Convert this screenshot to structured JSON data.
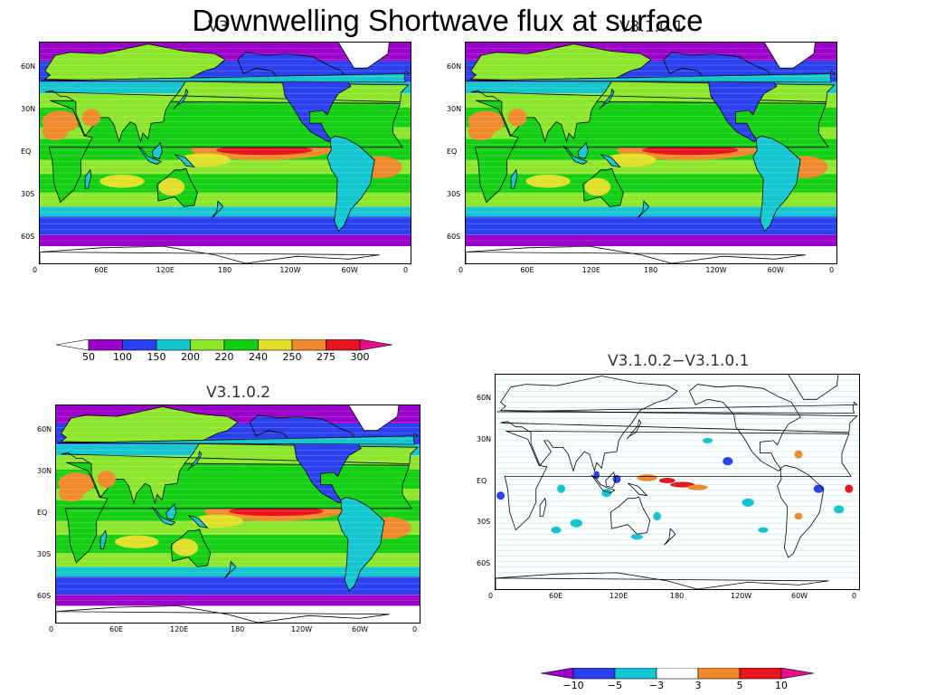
{
  "page": {
    "title": "Downwelling Shortwave flux at surface"
  },
  "panels": {
    "top_left": {
      "title": "V3",
      "kind": "absolute"
    },
    "top_right": {
      "title": "V3.1.0.1",
      "kind": "absolute"
    },
    "bottom_left": {
      "title": "V3.1.0.2",
      "kind": "absolute"
    },
    "bottom_right": {
      "title": "V3.1.0.2−V3.1.0.1",
      "kind": "difference"
    }
  },
  "axes": {
    "lat_ticks": [
      "60N",
      "30N",
      "EQ",
      "30S",
      "60S"
    ],
    "lon_ticks": [
      "0",
      "60E",
      "120E",
      "180",
      "120W",
      "60W",
      "0"
    ]
  },
  "colorbars": {
    "absolute": {
      "labels": [
        "50",
        "100",
        "150",
        "200",
        "220",
        "240",
        "250",
        "275",
        "300"
      ],
      "colors": [
        "#ffffff",
        "#9b00c8",
        "#2b40ee",
        "#14c6d0",
        "#8ee62c",
        "#12cf12",
        "#e0e02a",
        "#f08a2c",
        "#e8141e",
        "#e2108a"
      ]
    },
    "difference": {
      "labels": [
        "−10",
        "−5",
        "−3",
        "3",
        "5",
        "10"
      ],
      "colors": [
        "#9b00c8",
        "#2b40ee",
        "#14c6d0",
        "#ffffff",
        "#f08a2c",
        "#e8141e",
        "#e2108a"
      ]
    }
  }
}
